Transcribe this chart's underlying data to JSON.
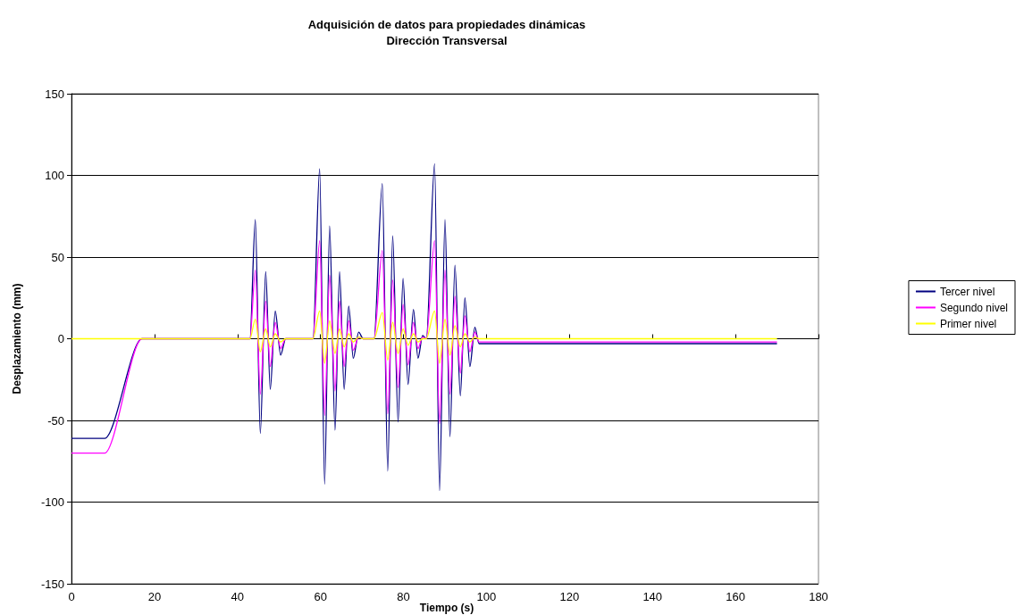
{
  "chart_data": {
    "type": "line",
    "title": "Adquisición de datos para propiedades dinámicas",
    "subtitle": "Dirección Transversal",
    "xlabel": "Tiempo (s)",
    "ylabel": "Desplazamiento (mm)",
    "x": [
      0,
      8,
      17,
      43,
      44.3,
      45.5,
      46.8,
      47.9,
      49.1,
      50.4,
      51.6,
      58.2,
      59.8,
      61.0,
      62.2,
      63.5,
      64.6,
      65.7,
      66.8,
      67.9,
      69.2,
      70.3,
      72.9,
      74.9,
      76.2,
      77.4,
      78.7,
      79.9,
      81.1,
      82.4,
      83.5,
      84.6,
      85.5,
      87.5,
      88.7,
      90.0,
      91.2,
      92.4,
      93.7,
      94.8,
      96.0,
      97.2,
      98.2,
      170
    ],
    "series": [
      {
        "name": "Tercer nivel",
        "color": "#000080",
        "values": [
          -61,
          -61,
          0,
          0,
          73,
          -58,
          41,
          -31,
          17,
          -10,
          0,
          0,
          104,
          -89,
          69,
          -56,
          41,
          -31,
          20,
          -12,
          4,
          0,
          0,
          95,
          -81,
          63,
          -51,
          37,
          -28,
          18,
          -12,
          2,
          0,
          107,
          -93,
          73,
          -60,
          45,
          -35,
          25,
          -17,
          7,
          -3,
          -3
        ]
      },
      {
        "name": "Segundo nivel",
        "color": "#ff00ff",
        "values": [
          -70,
          -70,
          0,
          0,
          42,
          -34,
          23,
          -17,
          10,
          -6,
          0,
          0,
          60,
          -47,
          39,
          -32,
          23,
          -17,
          11,
          -7,
          1,
          0,
          0,
          54,
          -46,
          36,
          -30,
          21,
          -16,
          10,
          -6,
          1,
          0,
          60,
          -52,
          42,
          -34,
          26,
          -21,
          14,
          -8,
          4,
          -2,
          -2
        ]
      },
      {
        "name": "Primer nivel",
        "color": "#ffff00",
        "values": [
          0,
          0,
          0,
          0,
          12,
          -8,
          6,
          -5,
          3,
          -2,
          0,
          0,
          17,
          -15,
          11,
          -9,
          6,
          -5,
          3,
          -2,
          1,
          0,
          0,
          16,
          -13,
          10,
          -9,
          6,
          -4,
          3,
          -2,
          0,
          0,
          17,
          -15,
          12,
          -10,
          8,
          -5,
          3,
          -2,
          1,
          0,
          0
        ]
      }
    ],
    "xlim": [
      0,
      180
    ],
    "xticks": [
      0,
      20,
      40,
      60,
      80,
      100,
      120,
      140,
      160,
      180
    ],
    "ylim": [
      -150,
      150
    ],
    "yticks": [
      -150,
      -100,
      -50,
      0,
      50,
      100,
      150
    ],
    "grid": "y",
    "legend": "right",
    "marker": "none",
    "line_style": "solid"
  }
}
